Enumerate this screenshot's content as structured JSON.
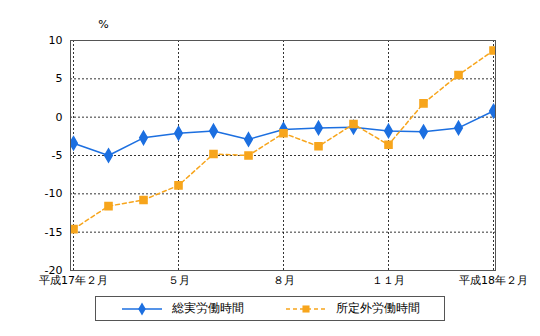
{
  "chart_data": {
    "type": "line",
    "y_label": "%",
    "categories": [
      "平成17年２月",
      null,
      null,
      "５月",
      null,
      null,
      "８月",
      null,
      null,
      "１１月",
      null,
      null,
      "平成18年２月"
    ],
    "series": [
      {
        "name": "総実労働時間",
        "color": "#1c6fe0",
        "marker": "diamond",
        "line_style": "solid",
        "values": [
          -3.4,
          -5.0,
          -2.7,
          -2.1,
          -1.8,
          -2.9,
          -1.6,
          -1.4,
          -1.3,
          -1.8,
          -1.9,
          -1.4,
          0.8
        ]
      },
      {
        "name": "所定外労働時間",
        "color": "#f7a51c",
        "marker": "square",
        "line_style": "dashed",
        "values": [
          -14.6,
          -11.6,
          -10.8,
          -8.9,
          -4.8,
          -5.0,
          -2.1,
          -3.8,
          -0.9,
          -3.6,
          1.8,
          5.5,
          8.7
        ]
      }
    ],
    "ylim": [
      -20,
      10
    ],
    "yticks": [
      -20,
      -15,
      -10,
      -5,
      0,
      5,
      10
    ],
    "grid": true,
    "legend": "bottom"
  }
}
